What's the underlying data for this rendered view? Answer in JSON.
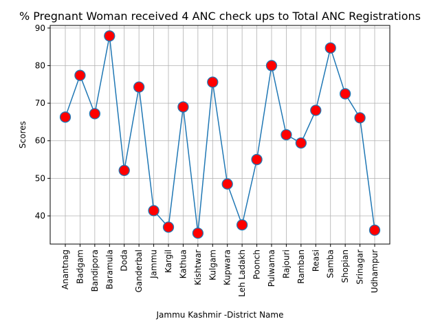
{
  "chart_data": {
    "type": "line",
    "title": "% Pregnant Woman received 4 ANC check ups to Total ANC Registrations",
    "xlabel": "Jammu Kashmir -District Name",
    "ylabel": "Scores",
    "ylim": [
      32.5,
      90.7
    ],
    "yticks": [
      40,
      50,
      60,
      70,
      80,
      90
    ],
    "grid": true,
    "categories": [
      "Anantnag",
      "Badgam",
      "Bandipora",
      "Baramula",
      "Doda",
      "Ganderbal",
      "Jammu",
      "Kargil",
      "Kathua",
      "Kishtwar",
      "Kulgam",
      "Kupwara",
      "Leh Ladakh",
      "Poonch",
      "Pulwama",
      "Rajouri",
      "Ramban",
      "Reasi",
      "Samba",
      "Shopian",
      "Srinagar",
      "Udhampur"
    ],
    "series": [
      {
        "values": [
          66.3,
          77.4,
          67.2,
          87.9,
          52.1,
          74.3,
          41.4,
          37.0,
          69.0,
          35.4,
          75.6,
          48.5,
          37.6,
          55.0,
          80.0,
          61.6,
          59.4,
          68.1,
          84.7,
          72.5,
          66.1,
          36.2
        ],
        "line_color": "#1f77b4",
        "marker_face": "#ff0000",
        "marker_edge": "#1f77b4"
      }
    ]
  }
}
